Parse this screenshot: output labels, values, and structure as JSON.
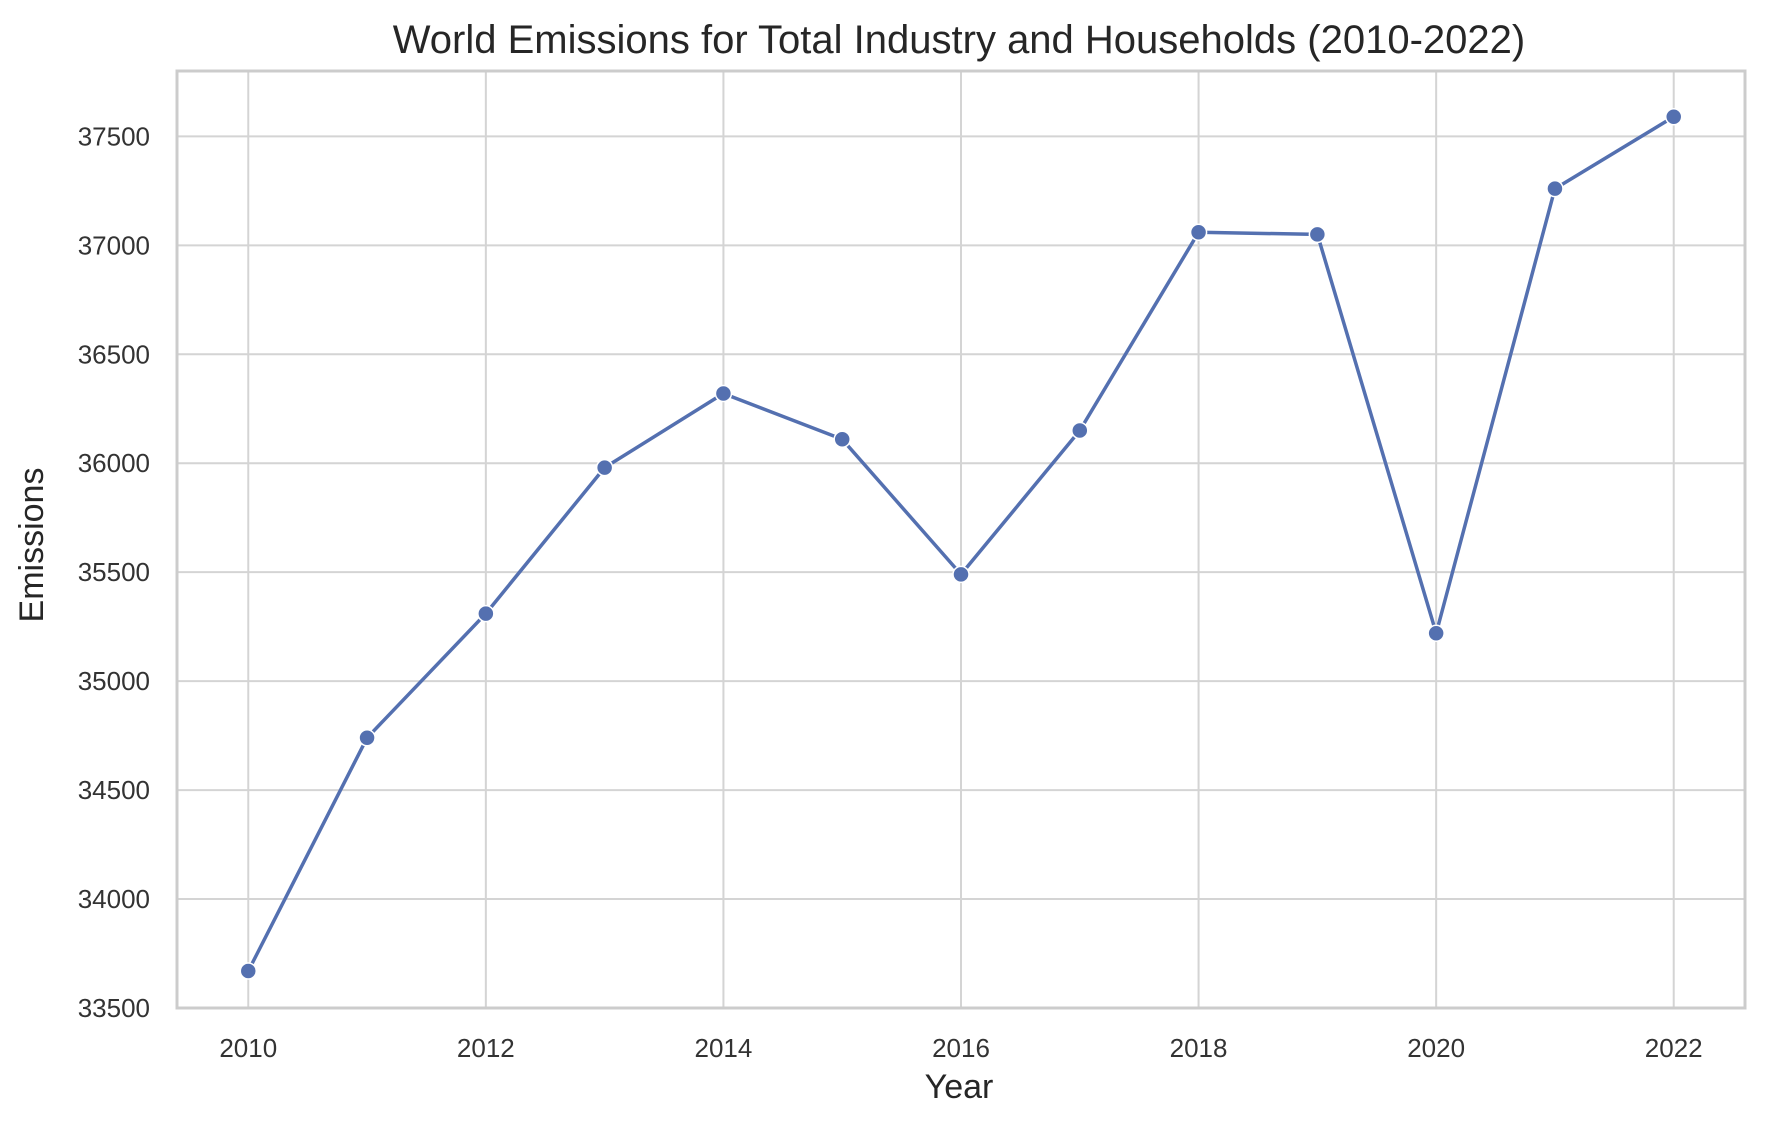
{
  "chart_data": {
    "type": "line",
    "title": "World Emissions for Total Industry and Households (2010-2022)",
    "xlabel": "Year",
    "ylabel": "Emissions",
    "xlim": [
      2009.4,
      2022.6
    ],
    "ylim": [
      33500,
      37800
    ],
    "x_ticks": [
      2010,
      2012,
      2014,
      2016,
      2018,
      2020,
      2022
    ],
    "y_ticks": [
      33500,
      34000,
      34500,
      35000,
      35500,
      36000,
      36500,
      37000,
      37500
    ],
    "grid": true,
    "legend": "none",
    "series": [
      {
        "color": "#5470b0",
        "marker": "circle",
        "x": [
          2010,
          2011,
          2012,
          2013,
          2014,
          2015,
          2016,
          2017,
          2018,
          2019,
          2020,
          2021,
          2022
        ],
        "values": [
          33670,
          34740,
          35310,
          35980,
          36320,
          36110,
          35490,
          36150,
          37060,
          37050,
          35220,
          37260,
          37590
        ]
      }
    ]
  }
}
